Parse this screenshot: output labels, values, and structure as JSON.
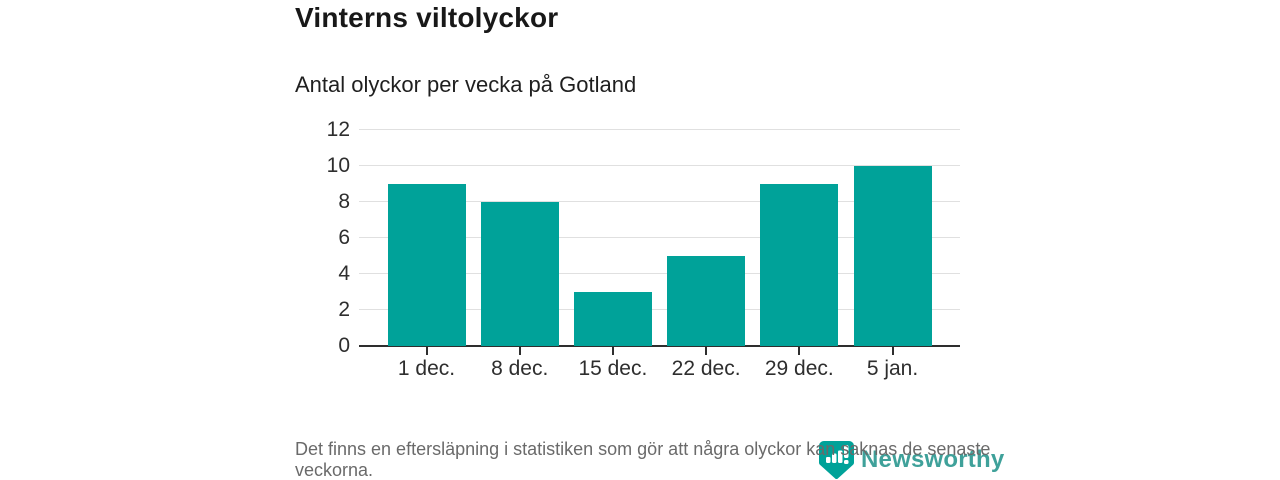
{
  "header": {
    "title": "Vinterns viltolyckor",
    "subtitle": "Antal olyckor per vecka på Gotland"
  },
  "chart_data": {
    "type": "bar",
    "title": "Vinterns viltolyckor",
    "subtitle": "Antal olyckor per vecka på Gotland",
    "categories": [
      "1 dec.",
      "8 dec.",
      "15 dec.",
      "22 dec.",
      "29 dec.",
      "5 jan."
    ],
    "values": [
      9,
      8,
      3,
      5,
      9,
      10
    ],
    "y_ticks": [
      0,
      2,
      4,
      6,
      8,
      10,
      12
    ],
    "ylim": [
      0,
      12
    ],
    "xlabel": "",
    "ylabel": "",
    "grid": true,
    "legend": "none",
    "bar_color": "#00a299",
    "axis_color": "#2e2e2e",
    "gridline_color": "#e0e0e0"
  },
  "footer": {
    "note": "Det finns en eftersläpning i statistiken som gör att några olyckor kan saknas de senaste veckorna."
  },
  "branding": {
    "logo_text": "Newsworthy",
    "logo_color": "#3fa19a",
    "icon": "bar-chart-banner-icon",
    "icon_color": "#00a299"
  }
}
